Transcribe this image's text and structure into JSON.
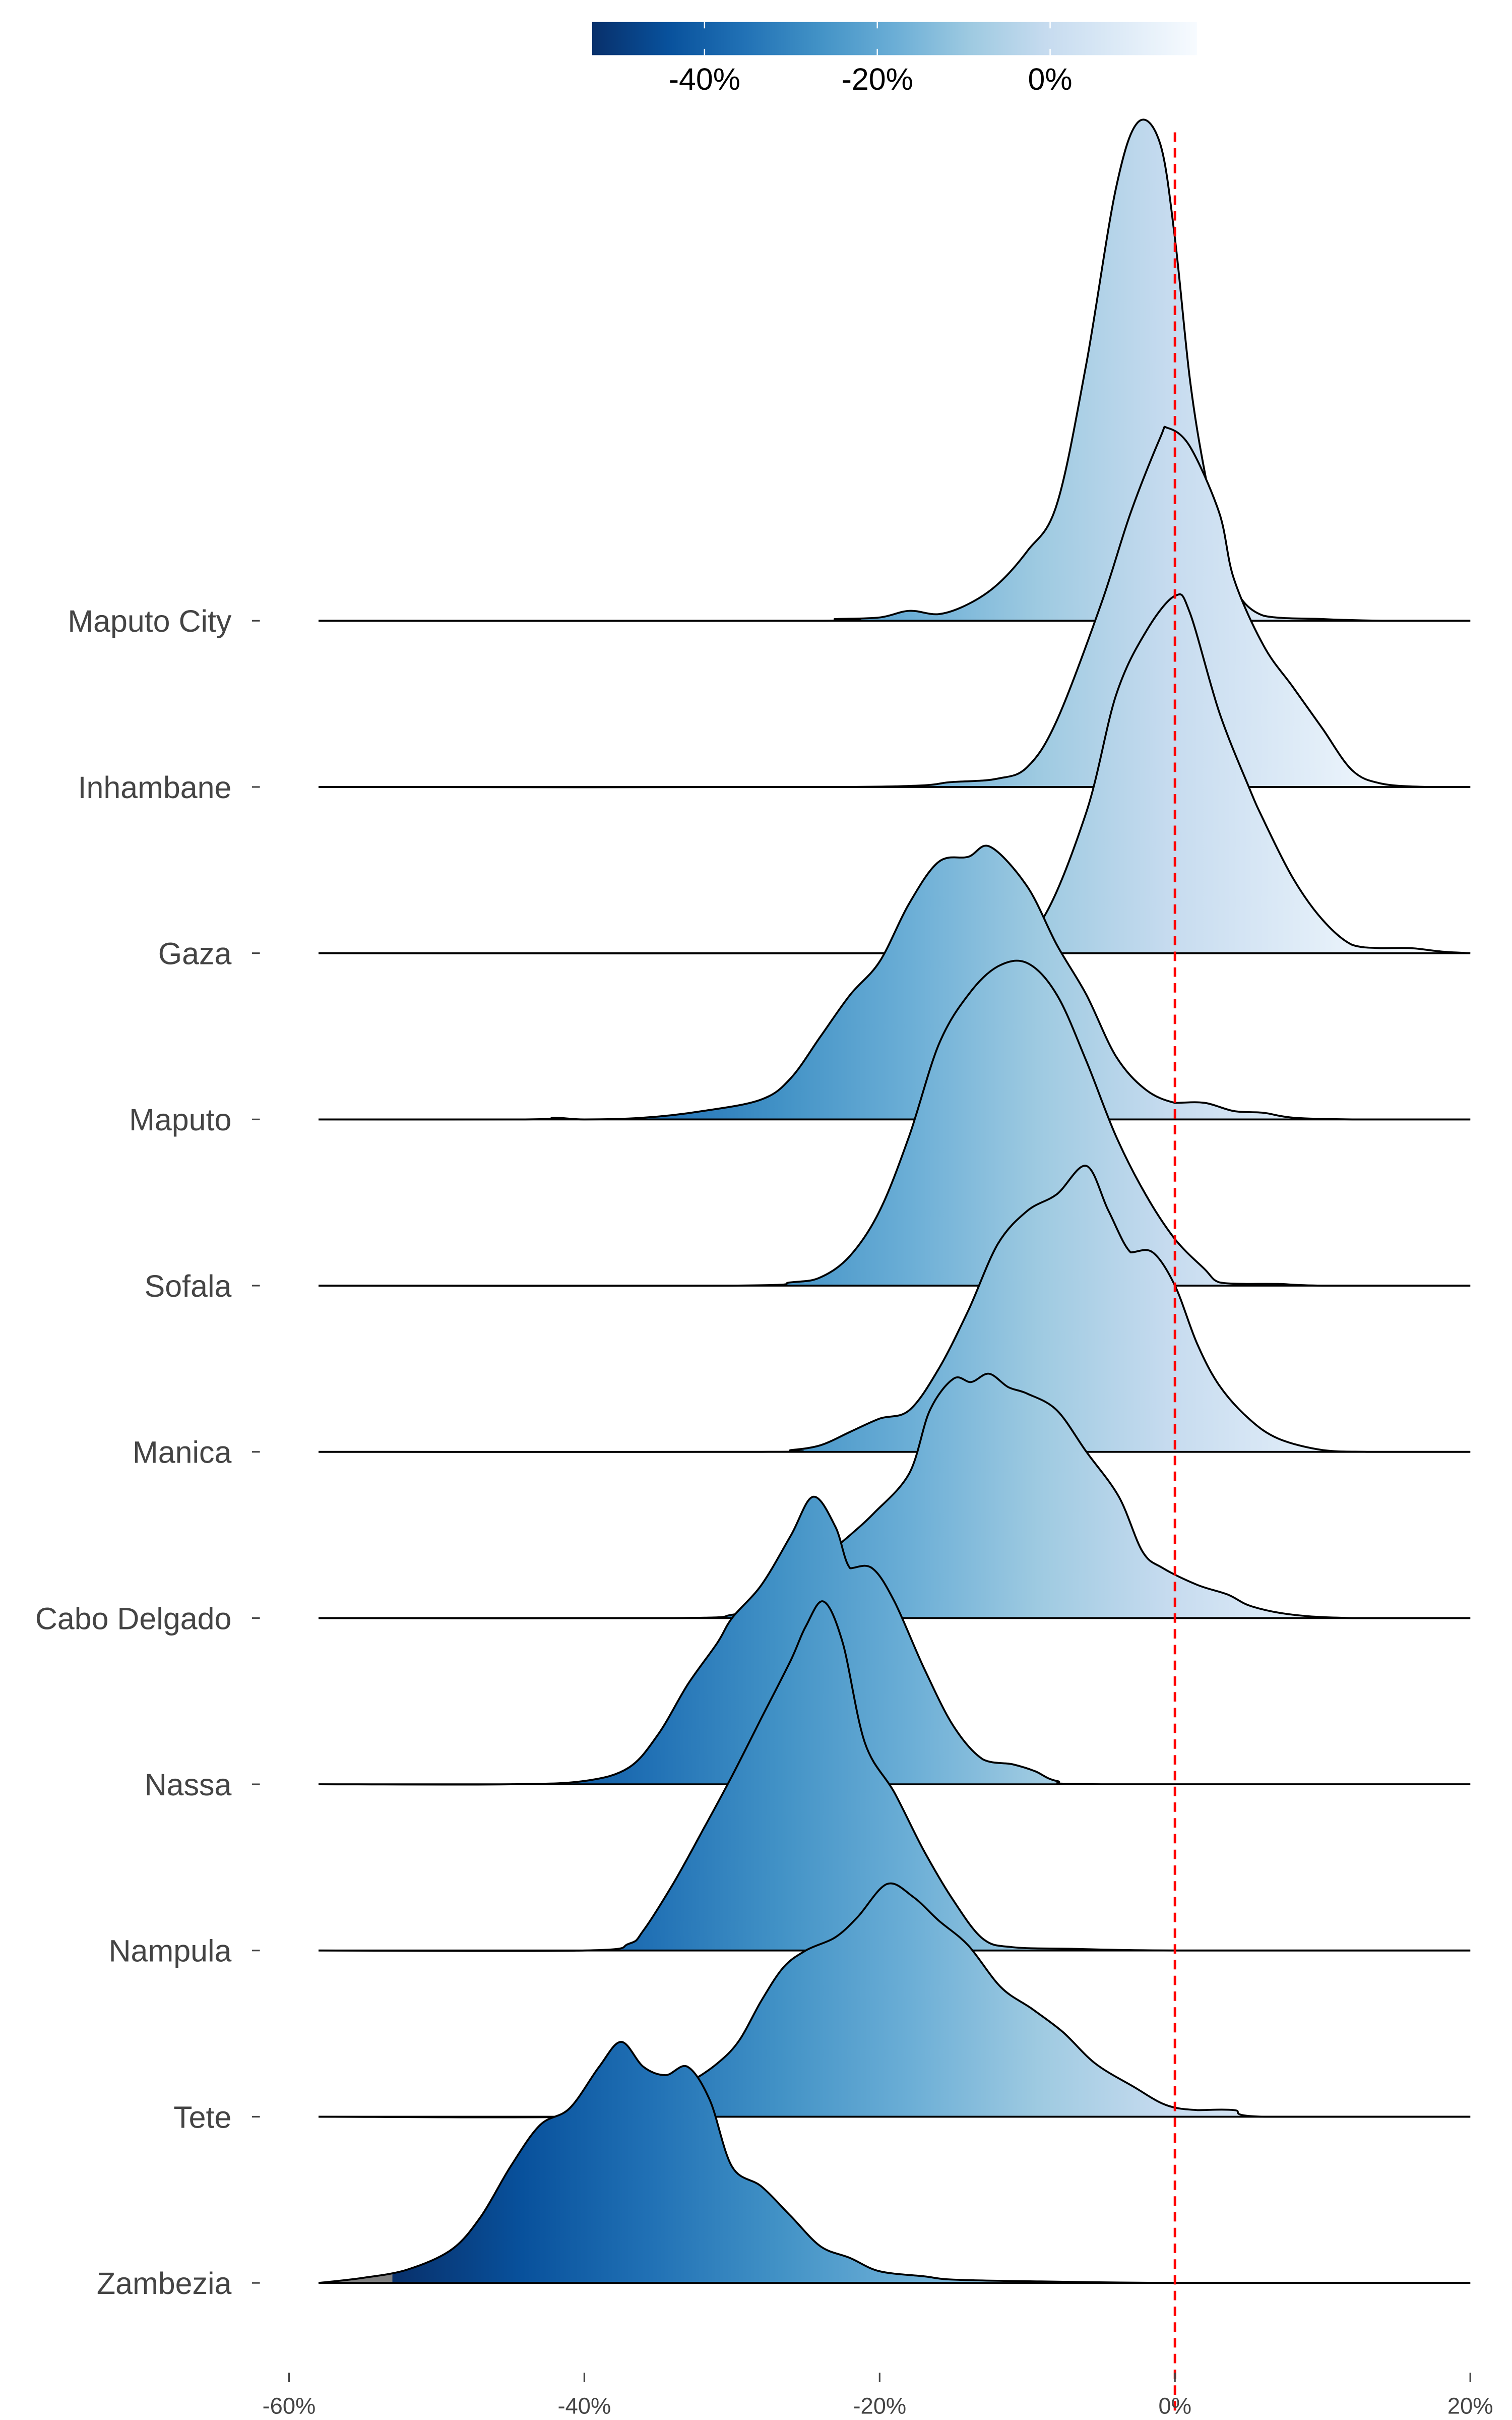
{
  "chart_data": {
    "type": "ridgeline",
    "title": "",
    "xlabel": "",
    "ylabel": "",
    "xlim": [
      -58,
      20
    ],
    "x_ticks": [
      "-60%",
      "-40%",
      "-20%",
      "0%",
      "20%"
    ],
    "x_tick_values": [
      -60,
      -40,
      -20,
      0,
      20
    ],
    "reference_line": {
      "x": 0,
      "color": "#ff0000",
      "style": "dashed"
    },
    "colorbar": {
      "position": "top",
      "colormap": "Blues_r",
      "range": [
        -53,
        17
      ],
      "ticks": [
        "-40%",
        "-20%",
        "0%"
      ],
      "tick_values": [
        -40,
        -20,
        0
      ],
      "stops": [
        "#08306b",
        "#08519c",
        "#2171b5",
        "#4292c6",
        "#6baed6",
        "#9ecae1",
        "#c6dbef",
        "#deebf7",
        "#f7fbff"
      ],
      "under_color": "#808080"
    },
    "density_units": "relative density (1 = row spacing)",
    "series": [
      {
        "name": "Maputo City",
        "points": [
          [
            -58,
            0
          ],
          [
            -24,
            0
          ],
          [
            -23,
            0.01
          ],
          [
            -20,
            0.02
          ],
          [
            -18,
            0.06
          ],
          [
            -16,
            0.04
          ],
          [
            -14,
            0.1
          ],
          [
            -12,
            0.22
          ],
          [
            -10,
            0.42
          ],
          [
            -8,
            0.7
          ],
          [
            -6,
            1.55
          ],
          [
            -4,
            2.6
          ],
          [
            -2.5,
            3.0
          ],
          [
            -1,
            2.87
          ],
          [
            0,
            2.3
          ],
          [
            1,
            1.46
          ],
          [
            2,
            0.9
          ],
          [
            3,
            0.5
          ],
          [
            4,
            0.2
          ],
          [
            6,
            0.03
          ],
          [
            10,
            0.01
          ],
          [
            14,
            0
          ],
          [
            20,
            0
          ]
        ]
      },
      {
        "name": "Inhambane",
        "points": [
          [
            -58,
            0
          ],
          [
            -22,
            0
          ],
          [
            -15,
            0.03
          ],
          [
            -12,
            0.05
          ],
          [
            -10,
            0.12
          ],
          [
            -8,
            0.4
          ],
          [
            -5,
            1.1
          ],
          [
            -3,
            1.65
          ],
          [
            -1,
            2.1
          ],
          [
            -0.5,
            2.16
          ],
          [
            1,
            2.05
          ],
          [
            3,
            1.65
          ],
          [
            4,
            1.25
          ],
          [
            6,
            0.85
          ],
          [
            8,
            0.6
          ],
          [
            10,
            0.35
          ],
          [
            12,
            0.1
          ],
          [
            14,
            0.02
          ],
          [
            17,
            0
          ],
          [
            20,
            0
          ]
        ]
      },
      {
        "name": "Gaza",
        "points": [
          [
            -58,
            0
          ],
          [
            -14,
            0
          ],
          [
            -12,
            0.02
          ],
          [
            -9,
            0.2
          ],
          [
            -6,
            0.85
          ],
          [
            -4,
            1.55
          ],
          [
            -2,
            1.93
          ],
          [
            0,
            2.15
          ],
          [
            1,
            2.05
          ],
          [
            3,
            1.45
          ],
          [
            5,
            1.0
          ],
          [
            6,
            0.8
          ],
          [
            8,
            0.45
          ],
          [
            10,
            0.2
          ],
          [
            12,
            0.05
          ],
          [
            14,
            0.03
          ],
          [
            16,
            0.03
          ],
          [
            18,
            0.01
          ],
          [
            20,
            0
          ]
        ]
      },
      {
        "name": "Maputo",
        "points": [
          [
            -58,
            0
          ],
          [
            -44,
            0
          ],
          [
            -42,
            0.01
          ],
          [
            -40,
            0
          ],
          [
            -36,
            0.01
          ],
          [
            -32,
            0.05
          ],
          [
            -28,
            0.12
          ],
          [
            -26,
            0.25
          ],
          [
            -24,
            0.5
          ],
          [
            -22,
            0.75
          ],
          [
            -20,
            0.95
          ],
          [
            -18,
            1.3
          ],
          [
            -16,
            1.55
          ],
          [
            -14,
            1.58
          ],
          [
            -12.5,
            1.64
          ],
          [
            -10,
            1.4
          ],
          [
            -8,
            1.05
          ],
          [
            -6,
            0.75
          ],
          [
            -4,
            0.38
          ],
          [
            -2,
            0.18
          ],
          [
            0,
            0.1
          ],
          [
            2,
            0.1
          ],
          [
            4,
            0.05
          ],
          [
            6,
            0.04
          ],
          [
            8,
            0.01
          ],
          [
            12,
            0
          ],
          [
            20,
            0
          ]
        ]
      },
      {
        "name": "Sofala",
        "points": [
          [
            -58,
            0
          ],
          [
            -30,
            0
          ],
          [
            -26,
            0.02
          ],
          [
            -24,
            0.05
          ],
          [
            -22,
            0.18
          ],
          [
            -20,
            0.45
          ],
          [
            -18,
            0.9
          ],
          [
            -16,
            1.45
          ],
          [
            -14,
            1.75
          ],
          [
            -12,
            1.92
          ],
          [
            -10,
            1.94
          ],
          [
            -8,
            1.75
          ],
          [
            -6,
            1.35
          ],
          [
            -4,
            0.9
          ],
          [
            -2,
            0.55
          ],
          [
            0,
            0.28
          ],
          [
            2,
            0.1
          ],
          [
            3,
            0.02
          ],
          [
            5,
            0.01
          ],
          [
            7,
            0.01
          ],
          [
            10,
            0
          ],
          [
            20,
            0
          ]
        ]
      },
      {
        "name": "Manica",
        "points": [
          [
            -58,
            0
          ],
          [
            -28,
            0
          ],
          [
            -26,
            0.01
          ],
          [
            -24,
            0.04
          ],
          [
            -22,
            0.12
          ],
          [
            -20,
            0.2
          ],
          [
            -18,
            0.25
          ],
          [
            -16,
            0.5
          ],
          [
            -14,
            0.85
          ],
          [
            -12,
            1.25
          ],
          [
            -10,
            1.45
          ],
          [
            -8,
            1.55
          ],
          [
            -6,
            1.72
          ],
          [
            -4.5,
            1.45
          ],
          [
            -3,
            1.2
          ],
          [
            -1.5,
            1.2
          ],
          [
            0,
            1.0
          ],
          [
            1.5,
            0.65
          ],
          [
            3,
            0.4
          ],
          [
            5,
            0.2
          ],
          [
            7,
            0.08
          ],
          [
            10,
            0.01
          ],
          [
            13,
            0
          ],
          [
            20,
            0
          ]
        ]
      },
      {
        "name": "Cabo Delgado",
        "points": [
          [
            -58,
            0
          ],
          [
            -34,
            0
          ],
          [
            -30,
            0.02
          ],
          [
            -28,
            0.08
          ],
          [
            -26,
            0.2
          ],
          [
            -24,
            0.35
          ],
          [
            -22,
            0.5
          ],
          [
            -20.4,
            0.63
          ],
          [
            -18,
            0.87
          ],
          [
            -16.6,
            1.25
          ],
          [
            -15,
            1.44
          ],
          [
            -13.8,
            1.42
          ],
          [
            -12.6,
            1.47
          ],
          [
            -11.3,
            1.39
          ],
          [
            -10,
            1.35
          ],
          [
            -8,
            1.25
          ],
          [
            -6,
            1.0
          ],
          [
            -3.8,
            0.73
          ],
          [
            -2.2,
            0.4
          ],
          [
            -0.8,
            0.3
          ],
          [
            1.5,
            0.2
          ],
          [
            3.6,
            0.14
          ],
          [
            5.2,
            0.07
          ],
          [
            8,
            0.02
          ],
          [
            12,
            0
          ],
          [
            20,
            0
          ]
        ]
      },
      {
        "name": "Nassa",
        "points": [
          [
            -58,
            0
          ],
          [
            -45,
            0
          ],
          [
            -40,
            0.02
          ],
          [
            -37,
            0.1
          ],
          [
            -35,
            0.3
          ],
          [
            -33,
            0.6
          ],
          [
            -31,
            0.85
          ],
          [
            -30,
            1.0
          ],
          [
            -28,
            1.2
          ],
          [
            -26,
            1.5
          ],
          [
            -24.5,
            1.73
          ],
          [
            -23,
            1.55
          ],
          [
            -22,
            1.3
          ],
          [
            -20.5,
            1.3
          ],
          [
            -19,
            1.1
          ],
          [
            -17,
            0.7
          ],
          [
            -15,
            0.35
          ],
          [
            -13,
            0.15
          ],
          [
            -11,
            0.12
          ],
          [
            -9.5,
            0.08
          ],
          [
            -8,
            0.02
          ],
          [
            -5,
            0
          ],
          [
            20,
            0
          ]
        ]
      },
      {
        "name": "Nampula",
        "points": [
          [
            -58,
            0
          ],
          [
            -40,
            0
          ],
          [
            -37,
            0.04
          ],
          [
            -36,
            0.12
          ],
          [
            -34,
            0.4
          ],
          [
            -32,
            0.72
          ],
          [
            -30,
            1.05
          ],
          [
            -28,
            1.4
          ],
          [
            -26,
            1.75
          ],
          [
            -25,
            1.95
          ],
          [
            -23.8,
            2.1
          ],
          [
            -22.5,
            1.85
          ],
          [
            -21,
            1.25
          ],
          [
            -19,
            0.95
          ],
          [
            -17,
            0.6
          ],
          [
            -15,
            0.3
          ],
          [
            -13,
            0.07
          ],
          [
            -11,
            0.02
          ],
          [
            -7,
            0.01
          ],
          [
            0,
            0
          ],
          [
            20,
            0
          ]
        ]
      },
      {
        "name": "Tete",
        "points": [
          [
            -58,
            0
          ],
          [
            -40,
            0
          ],
          [
            -36,
            0.05
          ],
          [
            -33,
            0.2
          ],
          [
            -31,
            0.32
          ],
          [
            -29.5,
            0.46
          ],
          [
            -28,
            0.7
          ],
          [
            -26.5,
            0.9
          ],
          [
            -25,
            1.0
          ],
          [
            -23,
            1.08
          ],
          [
            -21.5,
            1.2
          ],
          [
            -19.5,
            1.4
          ],
          [
            -17.7,
            1.32
          ],
          [
            -16,
            1.18
          ],
          [
            -14,
            1.03
          ],
          [
            -11.8,
            0.78
          ],
          [
            -9.7,
            0.65
          ],
          [
            -7.6,
            0.51
          ],
          [
            -5.4,
            0.32
          ],
          [
            -2.8,
            0.18
          ],
          [
            -0.6,
            0.07
          ],
          [
            1.5,
            0.04
          ],
          [
            4,
            0.04
          ],
          [
            6,
            0
          ],
          [
            20,
            0
          ]
        ]
      },
      {
        "name": "Zambezia",
        "points": [
          [
            -58,
            0
          ],
          [
            -55,
            0.03
          ],
          [
            -52,
            0.08
          ],
          [
            -49,
            0.2
          ],
          [
            -47,
            0.4
          ],
          [
            -45,
            0.7
          ],
          [
            -43,
            0.95
          ],
          [
            -41,
            1.05
          ],
          [
            -39,
            1.3
          ],
          [
            -37.5,
            1.45
          ],
          [
            -36,
            1.3
          ],
          [
            -34.5,
            1.25
          ],
          [
            -33,
            1.3
          ],
          [
            -31.5,
            1.1
          ],
          [
            -30,
            0.7
          ],
          [
            -28,
            0.58
          ],
          [
            -26,
            0.4
          ],
          [
            -24,
            0.22
          ],
          [
            -22,
            0.15
          ],
          [
            -20,
            0.07
          ],
          [
            -17,
            0.04
          ],
          [
            -15,
            0.02
          ],
          [
            -10,
            0.01
          ],
          [
            0,
            0
          ],
          [
            20,
            0
          ]
        ]
      }
    ]
  }
}
